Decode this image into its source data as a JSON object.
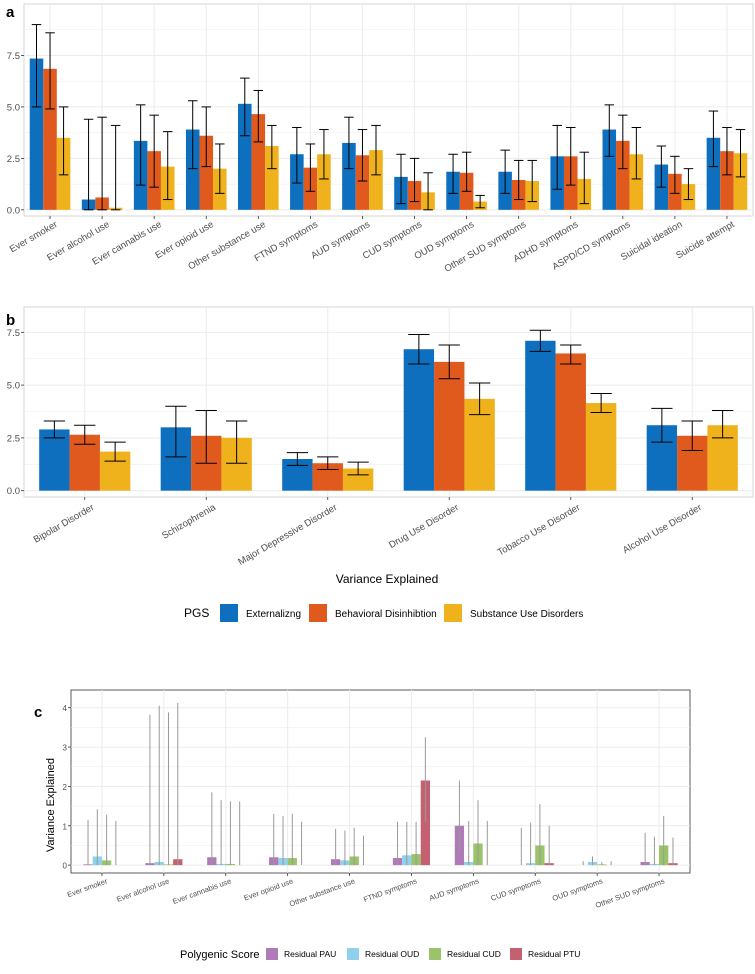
{
  "colors": {
    "externalizing": "#0e6fbf",
    "behavioral": "#e05a1e",
    "sud": "#f0b21c",
    "pau": "#b07ab8",
    "oud": "#8fd0ec",
    "cud": "#9bc46a",
    "ptu": "#c46070",
    "grid": "#ebebeb",
    "errorbar": "#000000"
  },
  "chart_data": [
    {
      "panel": "a",
      "type": "bar",
      "title": "",
      "xlabel": "",
      "ylabel": "",
      "ylim": [
        -0.3,
        10.0
      ],
      "yticks": [
        0.0,
        2.5,
        5.0,
        7.5
      ],
      "ytick_labels": [
        "0.0",
        "2.5",
        "5.0",
        "7.5"
      ],
      "categories": [
        "Ever smoker",
        "Ever alcohol use",
        "Ever cannabis use",
        "Ever opioid use",
        "Other substance use",
        "FTND symptoms",
        "AUD symptoms",
        "CUD symptoms",
        "OUD symptoms",
        "Other SUD symptoms",
        "ADHD symptoms",
        "ASPD/CD symptoms",
        "Suicidal ideation",
        "Suicide attempt"
      ],
      "series": [
        {
          "name": "Externalizng",
          "color_key": "externalizing",
          "values": [
            7.35,
            0.5,
            3.35,
            3.9,
            5.15,
            2.7,
            3.25,
            1.6,
            1.85,
            1.85,
            2.6,
            3.9,
            2.2,
            3.5
          ],
          "lower": [
            5.0,
            0.0,
            1.2,
            2.0,
            3.6,
            1.3,
            2.0,
            0.3,
            0.8,
            0.8,
            1.0,
            2.6,
            1.1,
            2.1
          ],
          "upper": [
            9.0,
            4.4,
            5.1,
            5.3,
            6.4,
            4.0,
            4.5,
            2.7,
            2.7,
            2.9,
            4.1,
            5.1,
            3.1,
            4.8
          ]
        },
        {
          "name": "Behavioral Disinhibtion",
          "color_key": "behavioral",
          "values": [
            6.85,
            0.6,
            2.85,
            3.6,
            4.65,
            2.05,
            2.65,
            1.4,
            1.8,
            1.45,
            2.6,
            3.35,
            1.75,
            2.85
          ],
          "lower": [
            4.9,
            0.0,
            1.1,
            2.1,
            3.3,
            0.9,
            1.4,
            0.4,
            0.9,
            0.5,
            1.2,
            2.0,
            0.8,
            1.7
          ],
          "upper": [
            8.6,
            4.5,
            4.6,
            5.0,
            5.8,
            3.2,
            3.9,
            2.5,
            2.8,
            2.4,
            4.0,
            4.6,
            2.6,
            4.0
          ]
        },
        {
          "name": "Substance Use Disorders",
          "color_key": "sud",
          "values": [
            3.5,
            0.1,
            2.1,
            2.0,
            3.1,
            2.7,
            2.9,
            0.85,
            0.4,
            1.4,
            1.5,
            2.7,
            1.25,
            2.75
          ],
          "lower": [
            1.7,
            0.0,
            0.5,
            0.8,
            2.0,
            1.5,
            1.7,
            0.0,
            0.1,
            0.4,
            0.3,
            1.5,
            0.5,
            1.6
          ],
          "upper": [
            5.0,
            4.1,
            3.8,
            3.2,
            4.1,
            3.9,
            4.1,
            1.8,
            0.7,
            2.4,
            2.8,
            4.0,
            2.0,
            3.9
          ]
        }
      ]
    },
    {
      "panel": "b",
      "type": "bar",
      "title": "",
      "xlabel": "Variance Explained",
      "ylabel": "",
      "ylim": [
        -0.3,
        8.7
      ],
      "yticks": [
        0.0,
        2.5,
        5.0,
        7.5
      ],
      "ytick_labels": [
        "0.0",
        "2.5",
        "5.0",
        "7.5"
      ],
      "categories": [
        "Bipolar Disorder",
        "Schizophrenia",
        "Major Depressive Disorder",
        "Drug Use Disorder",
        "Tobacco Use Disorder",
        "Alcohol Use Disorder"
      ],
      "legend_title": "PGS",
      "legend_position": "bottom",
      "series": [
        {
          "name": "Externalizng",
          "color_key": "externalizing",
          "values": [
            2.9,
            3.0,
            1.5,
            6.7,
            7.1,
            3.1
          ],
          "lower": [
            2.5,
            1.6,
            1.2,
            6.0,
            6.6,
            2.3
          ],
          "upper": [
            3.3,
            4.0,
            1.8,
            7.4,
            7.6,
            3.9
          ]
        },
        {
          "name": "Behavioral Disinhibtion",
          "color_key": "behavioral",
          "values": [
            2.65,
            2.6,
            1.3,
            6.1,
            6.5,
            2.6
          ],
          "lower": [
            2.2,
            1.3,
            1.0,
            5.3,
            6.0,
            1.9
          ],
          "upper": [
            3.1,
            3.8,
            1.6,
            6.9,
            6.9,
            3.3
          ]
        },
        {
          "name": "Substance Use Disorders",
          "color_key": "sud",
          "values": [
            1.85,
            2.5,
            1.05,
            4.35,
            4.15,
            3.1
          ],
          "lower": [
            1.4,
            1.3,
            0.75,
            3.6,
            3.7,
            2.5
          ],
          "upper": [
            2.3,
            3.3,
            1.35,
            5.1,
            4.6,
            3.8
          ]
        }
      ]
    },
    {
      "panel": "c",
      "type": "bar",
      "title": "",
      "xlabel": "",
      "ylabel": "Variance Explained",
      "ylim": [
        -0.2,
        4.45
      ],
      "yticks": [
        0,
        1,
        2,
        3,
        4
      ],
      "ytick_labels": [
        "0",
        "1",
        "2",
        "3",
        "4"
      ],
      "categories": [
        "Ever smoker",
        "Ever alcohol use",
        "Ever cannabis use",
        "Ever opioid use",
        "Other substance use",
        "FTND symptoms",
        "AUD symptoms",
        "CUD symptoms",
        "OUD symptoms",
        "Other SUD symptoms"
      ],
      "legend_title": "Polygenic Score",
      "legend_position": "bottom",
      "series": [
        {
          "name": "Residual PAU",
          "color_key": "pau",
          "values": [
            0.02,
            0.05,
            0.2,
            0.2,
            0.15,
            0.18,
            1.0,
            0.0,
            0.0,
            0.08
          ],
          "lower": [
            0.0,
            0.0,
            0.0,
            0.0,
            0.0,
            0.0,
            0.3,
            0.0,
            0.0,
            0.0
          ],
          "upper": [
            1.15,
            3.82,
            1.85,
            1.3,
            0.92,
            1.1,
            2.15,
            0.95,
            0.1,
            0.82
          ]
        },
        {
          "name": "Residual OUD",
          "color_key": "oud",
          "values": [
            0.22,
            0.08,
            0.03,
            0.18,
            0.12,
            0.25,
            0.08,
            0.05,
            0.08,
            0.03
          ],
          "lower": [
            0.0,
            0.0,
            0.0,
            0.0,
            0.0,
            0.0,
            0.0,
            0.0,
            0.0,
            0.0
          ],
          "upper": [
            1.42,
            4.05,
            1.65,
            1.25,
            0.88,
            1.1,
            1.12,
            1.08,
            0.22,
            0.72
          ]
        },
        {
          "name": "Residual CUD",
          "color_key": "cud",
          "values": [
            0.12,
            0.02,
            0.03,
            0.18,
            0.22,
            0.28,
            0.55,
            0.5,
            0.02,
            0.5
          ],
          "lower": [
            0.0,
            0.0,
            0.0,
            0.0,
            0.0,
            0.0,
            0.0,
            0.0,
            0.0,
            0.0
          ],
          "upper": [
            1.28,
            3.88,
            1.62,
            1.3,
            0.95,
            1.1,
            1.65,
            1.55,
            0.08,
            1.25
          ]
        },
        {
          "name": "Residual PTU",
          "color_key": "ptu",
          "values": [
            0.0,
            0.15,
            0.0,
            0.0,
            0.0,
            2.15,
            0.0,
            0.05,
            0.0,
            0.05
          ],
          "lower": [
            0.0,
            0.0,
            0.0,
            0.0,
            0.0,
            1.1,
            0.0,
            0.0,
            0.0,
            0.0
          ],
          "upper": [
            1.12,
            4.12,
            1.62,
            1.1,
            0.75,
            3.25,
            1.12,
            1.0,
            0.1,
            0.7
          ]
        }
      ]
    }
  ],
  "legend_b": {
    "title": "PGS",
    "items": [
      "Externalizng",
      "Behavioral Disinhibtion",
      "Substance Use Disorders"
    ]
  },
  "legend_c": {
    "title": "Polygenic Score",
    "items": [
      "Residual PAU",
      "Residual OUD",
      "Residual CUD",
      "Residual PTU"
    ]
  },
  "panel_labels": [
    "a",
    "b",
    "c"
  ]
}
